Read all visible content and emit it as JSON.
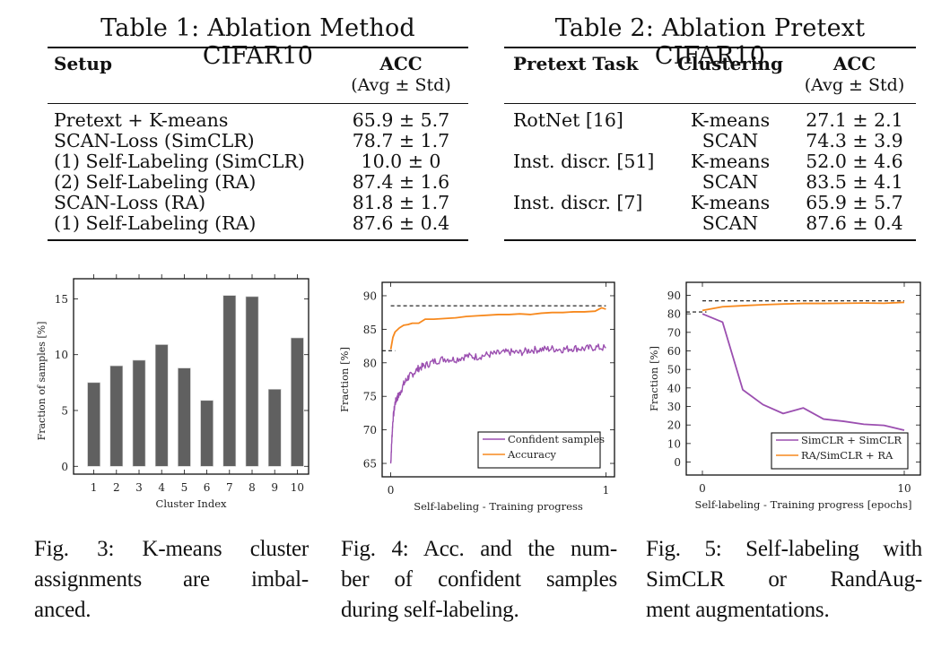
{
  "table1": {
    "title": "Table 1: Ablation Method CIFAR10",
    "headers": {
      "setup": "Setup",
      "acc": "ACC",
      "acc_sub": "(Avg ± Std)"
    },
    "rows": [
      {
        "setup": "Pretext + K-means",
        "indent": false,
        "acc": "65.9 ± 5.7"
      },
      {
        "setup": "SCAN-Loss (SimCLR)",
        "indent": false,
        "acc": "78.7 ± 1.7"
      },
      {
        "setup": "(1) Self-Labeling (SimCLR)",
        "indent": true,
        "acc": "10.0 ± 0"
      },
      {
        "setup": "(2) Self-Labeling (RA)",
        "indent": true,
        "acc": "87.4 ± 1.6"
      },
      {
        "setup": "SCAN-Loss (RA)",
        "indent": false,
        "acc": "81.8 ± 1.7"
      },
      {
        "setup": "(1) Self-Labeling (RA)",
        "indent": true,
        "acc": "87.6 ± 0.4"
      }
    ]
  },
  "table2": {
    "title": "Table 2: Ablation Pretext CIFAR10",
    "headers": {
      "pretext": "Pretext Task",
      "clustering": "Clustering",
      "acc": "ACC",
      "acc_sub": "(Avg ± Std)"
    },
    "rows": [
      {
        "pretext": "RotNet [16]",
        "clustering": "K-means",
        "acc": "27.1 ± 2.1"
      },
      {
        "pretext": "",
        "clustering": "SCAN",
        "acc": "74.3 ± 3.9"
      },
      {
        "pretext": "Inst. discr. [51]",
        "clustering": "K-means",
        "acc": "52.0 ± 4.6"
      },
      {
        "pretext": "",
        "clustering": "SCAN",
        "acc": "83.5 ± 4.1"
      },
      {
        "pretext": "Inst. discr. [7]",
        "clustering": "K-means",
        "acc": "65.9 ± 5.7"
      },
      {
        "pretext": "",
        "clustering": "SCAN",
        "acc": "87.6 ± 0.4"
      }
    ]
  },
  "colors": {
    "bar": "#606060",
    "purple": "#9b4fb0",
    "orange": "#f7891e",
    "axis": "#111111"
  },
  "chart_data": [
    {
      "id": "fig3",
      "type": "bar",
      "title": "",
      "xlabel": "Cluster Index",
      "ylabel": "Fraction of samples [%]",
      "categories": [
        "1",
        "2",
        "3",
        "4",
        "5",
        "6",
        "7",
        "8",
        "9",
        "10"
      ],
      "values": [
        7.5,
        9.0,
        9.5,
        10.9,
        8.8,
        5.9,
        15.3,
        15.2,
        6.9,
        11.5
      ],
      "ylim": [
        -0.7,
        16.8
      ],
      "yticks": [
        0,
        5,
        10,
        15
      ],
      "grid": false
    },
    {
      "id": "fig4",
      "type": "line",
      "title": "",
      "xlabel": "Self-labeling - Training progress",
      "ylabel": "Fraction [%]",
      "xlim": [
        -0.04,
        1.04
      ],
      "ylim": [
        63.0,
        92.0
      ],
      "xticks": [
        0,
        1
      ],
      "yticks": [
        65,
        70,
        75,
        80,
        85,
        90
      ],
      "legend": "bottom-right",
      "reference_lines": [
        {
          "y": 88.5,
          "x_range": [
            0,
            1
          ],
          "style": "dashed"
        },
        {
          "y": 81.8,
          "x_range": [
            -0.04,
            0.02
          ],
          "style": "dashed"
        }
      ],
      "series": [
        {
          "name": "Confident samples",
          "color_key": "purple",
          "x": [
            0,
            0.005,
            0.01,
            0.02,
            0.03,
            0.04,
            0.06,
            0.08,
            0.1,
            0.13,
            0.16,
            0.2,
            0.25,
            0.3,
            0.35,
            0.4,
            0.45,
            0.5,
            0.55,
            0.6,
            0.65,
            0.7,
            0.75,
            0.8,
            0.85,
            0.9,
            0.95,
            1.0
          ],
          "values": [
            65.0,
            68.5,
            71.5,
            74.0,
            74.8,
            75.3,
            76.8,
            77.8,
            78.3,
            79.2,
            79.6,
            80.2,
            80.6,
            80.5,
            81.0,
            80.9,
            81.2,
            81.4,
            81.6,
            81.5,
            81.9,
            82.0,
            82.1,
            82.0,
            82.2,
            82.1,
            82.3,
            82.2
          ],
          "noise": true
        },
        {
          "name": "Accuracy",
          "color_key": "orange",
          "x": [
            0,
            0.01,
            0.02,
            0.04,
            0.06,
            0.08,
            0.1,
            0.13,
            0.16,
            0.2,
            0.25,
            0.3,
            0.35,
            0.4,
            0.45,
            0.5,
            0.55,
            0.6,
            0.65,
            0.7,
            0.75,
            0.8,
            0.85,
            0.9,
            0.95,
            0.98,
            1.0
          ],
          "values": [
            82.0,
            83.8,
            84.6,
            85.2,
            85.6,
            85.7,
            85.9,
            85.9,
            86.5,
            86.5,
            86.6,
            86.7,
            86.9,
            87.0,
            87.1,
            87.2,
            87.2,
            87.3,
            87.2,
            87.4,
            87.5,
            87.5,
            87.6,
            87.6,
            87.7,
            88.2,
            88.0
          ],
          "noise": false
        }
      ]
    },
    {
      "id": "fig5",
      "type": "line",
      "title": "",
      "xlabel": "Self-labeling - Training progress [epochs]",
      "ylabel": "Fraction [%]",
      "xlim": [
        -0.8,
        10.8
      ],
      "ylim": [
        -7,
        97
      ],
      "xticks": [
        0,
        10
      ],
      "yticks": [
        0,
        10,
        20,
        30,
        40,
        50,
        60,
        70,
        80,
        90
      ],
      "legend": "bottom-right",
      "reference_lines": [
        {
          "y": 87.0,
          "x_range": [
            0,
            10
          ],
          "style": "dashed"
        },
        {
          "y": 81.0,
          "x_range": [
            -0.8,
            0.2
          ],
          "style": "dashed"
        }
      ],
      "series": [
        {
          "name": "SimCLR + SimCLR",
          "color_key": "purple",
          "x": [
            0,
            1,
            2,
            3,
            4,
            5,
            6,
            7,
            8,
            9,
            10
          ],
          "values": [
            80.0,
            75.5,
            39.0,
            31.0,
            26.2,
            29.2,
            23.2,
            22.0,
            20.4,
            19.8,
            17.2
          ]
        },
        {
          "name": "RA/SimCLR + RA",
          "color_key": "orange",
          "x": [
            0,
            1,
            2,
            3,
            4,
            5,
            6,
            7,
            8,
            9,
            10
          ],
          "values": [
            81.8,
            83.8,
            84.4,
            84.9,
            85.3,
            85.6,
            85.6,
            85.7,
            85.8,
            85.7,
            86.2
          ]
        }
      ]
    }
  ],
  "captions": {
    "fig3": [
      "Fig. 3: K-means cluster",
      "assignments are imbal-",
      "anced."
    ],
    "fig4": [
      "Fig. 4: Acc. and the num-",
      "ber of confident samples",
      "during self-labeling."
    ],
    "fig5": [
      "Fig. 5: Self-labeling with",
      "SimCLR or RandAug-",
      "ment augmentations."
    ]
  }
}
